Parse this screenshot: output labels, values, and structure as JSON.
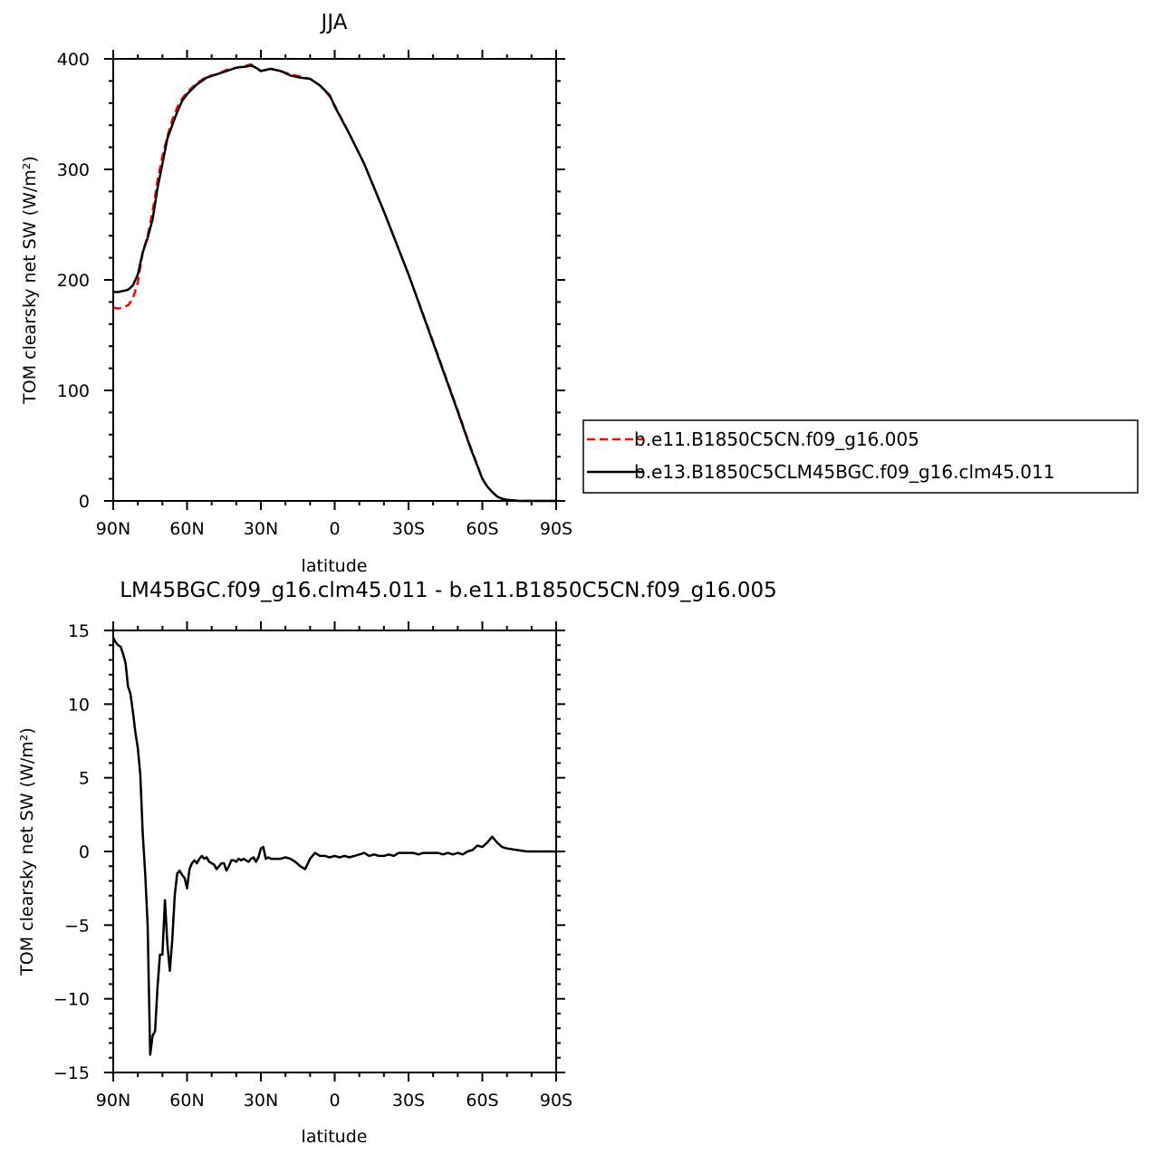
{
  "chart_data": [
    {
      "type": "line",
      "title": "JJA",
      "xlabel": "latitude",
      "ylabel": "TOM clearsky net SW (W/m²)",
      "x_ticks": [
        "90N",
        "60N",
        "30N",
        "0",
        "30S",
        "60S",
        "90S"
      ],
      "x_tick_values": [
        90,
        60,
        30,
        0,
        -30,
        -60,
        -90
      ],
      "xlim": [
        90,
        -90
      ],
      "ylim": [
        0,
        400
      ],
      "y_ticks": [
        0,
        100,
        200,
        300,
        400
      ],
      "legend_position": "right",
      "series": [
        {
          "name": "b.e11.B1850C5CN.f09_g16.005",
          "color": "#ff0000",
          "dash": "dashed",
          "x": [
            90,
            88,
            86,
            84,
            82,
            80,
            78,
            76,
            74,
            72,
            70,
            68,
            66,
            64,
            62,
            60,
            56,
            52,
            48,
            44,
            40,
            36,
            34,
            32,
            30,
            26,
            22,
            18,
            14,
            10,
            6,
            2,
            0,
            -6,
            -12,
            -20,
            -30,
            -40,
            -50,
            -55,
            -60,
            -62,
            -64,
            -66,
            -68,
            -70,
            -75,
            -80,
            -85,
            -90
          ],
          "y": [
            175,
            174,
            175,
            177,
            183,
            198,
            225,
            240,
            262,
            290,
            312,
            330,
            345,
            356,
            364,
            370,
            378,
            384,
            386,
            390,
            392,
            394,
            395,
            392,
            389,
            391,
            389,
            386,
            384,
            382,
            376,
            366,
            358,
            332,
            305,
            262,
            205,
            144,
            82,
            50,
            20,
            13,
            8,
            4,
            2,
            1,
            0,
            0,
            0,
            0
          ]
        },
        {
          "name": "b.e13.B1850C5CLM45BGC.f09_g16.clm45.011",
          "color": "#000000",
          "dash": "solid",
          "x": [
            90,
            88,
            86,
            84,
            82,
            80,
            78,
            76,
            74,
            72,
            70,
            68,
            66,
            64,
            62,
            60,
            56,
            52,
            48,
            44,
            40,
            36,
            34,
            32,
            30,
            26,
            22,
            18,
            14,
            10,
            6,
            2,
            0,
            -6,
            -12,
            -20,
            -30,
            -40,
            -50,
            -55,
            -60,
            -62,
            -64,
            -66,
            -68,
            -70,
            -75,
            -80,
            -85,
            -90
          ],
          "y": [
            189,
            189,
            190,
            191,
            195,
            205,
            225,
            238,
            255,
            283,
            305,
            328,
            340,
            352,
            362,
            368,
            377,
            383,
            386,
            389,
            392,
            393,
            394,
            392,
            389,
            391,
            389,
            385,
            383,
            382,
            376,
            367,
            357,
            332,
            305,
            262,
            205,
            143,
            81,
            49,
            20,
            13,
            8,
            4,
            2,
            1,
            0,
            0,
            0,
            0
          ]
        }
      ]
    },
    {
      "type": "line",
      "title": "LM45BGC.f09_g16.clm45.011 - b.e11.B1850C5CN.f09_g16.005",
      "xlabel": "latitude",
      "ylabel": "TOM clearsky net SW (W/m²)",
      "x_ticks": [
        "90N",
        "60N",
        "30N",
        "0",
        "30S",
        "60S",
        "90S"
      ],
      "x_tick_values": [
        90,
        60,
        30,
        0,
        -30,
        -60,
        -90
      ],
      "xlim": [
        90,
        -90
      ],
      "ylim": [
        -15,
        15
      ],
      "y_ticks": [
        -15,
        -10,
        -5,
        0,
        5,
        10,
        15
      ],
      "series": [
        {
          "color": "#000000",
          "dash": "solid",
          "x": [
            90,
            89,
            88,
            87,
            86,
            85,
            84,
            83,
            82,
            81,
            80,
            79,
            78,
            77,
            76,
            75,
            74,
            73,
            72,
            71,
            70,
            69,
            68,
            67,
            66,
            65,
            64,
            63,
            62,
            61,
            60,
            59,
            58,
            57,
            56,
            55,
            54,
            53,
            52,
            51,
            50,
            49,
            48,
            47,
            46,
            45,
            44,
            43,
            42,
            41,
            40,
            39,
            38,
            37,
            36,
            35,
            34,
            33,
            32,
            31,
            30,
            29,
            28,
            27,
            26,
            24,
            22,
            20,
            18,
            16,
            14,
            12,
            10,
            8,
            6,
            4,
            2,
            0,
            -2,
            -4,
            -6,
            -8,
            -10,
            -12,
            -14,
            -16,
            -18,
            -20,
            -22,
            -24,
            -26,
            -28,
            -30,
            -32,
            -34,
            -36,
            -38,
            -40,
            -42,
            -44,
            -46,
            -48,
            -50,
            -52,
            -54,
            -56,
            -58,
            -60,
            -62,
            -64,
            -66,
            -68,
            -70,
            -74,
            -78,
            -82,
            -86,
            -90
          ],
          "y": [
            14.5,
            14.2,
            14.0,
            13.9,
            13.4,
            12.8,
            11.2,
            10.7,
            9.5,
            8.1,
            7.0,
            5.2,
            1.2,
            -1.5,
            -5.0,
            -13.8,
            -12.5,
            -12.2,
            -9.2,
            -7.0,
            -7.0,
            -3.3,
            -6.3,
            -8.1,
            -6.0,
            -3.0,
            -1.5,
            -1.3,
            -1.6,
            -1.8,
            -2.5,
            -1.2,
            -0.8,
            -0.6,
            -0.8,
            -0.5,
            -0.3,
            -0.5,
            -0.4,
            -0.7,
            -0.8,
            -0.9,
            -1.2,
            -1.0,
            -0.8,
            -0.8,
            -1.3,
            -1.0,
            -0.6,
            -0.6,
            -0.7,
            -0.5,
            -0.6,
            -0.5,
            -0.6,
            -0.7,
            -0.5,
            -0.4,
            -0.7,
            -0.4,
            0.2,
            0.3,
            -0.5,
            -0.4,
            -0.5,
            -0.5,
            -0.5,
            -0.4,
            -0.5,
            -0.7,
            -1.0,
            -1.2,
            -0.5,
            -0.1,
            -0.3,
            -0.3,
            -0.4,
            -0.3,
            -0.4,
            -0.3,
            -0.4,
            -0.3,
            -0.2,
            -0.1,
            -0.3,
            -0.2,
            -0.3,
            -0.3,
            -0.2,
            -0.3,
            -0.1,
            -0.1,
            -0.1,
            -0.1,
            -0.2,
            -0.1,
            -0.1,
            -0.1,
            -0.1,
            -0.2,
            -0.1,
            -0.2,
            -0.1,
            -0.2,
            0.0,
            0.1,
            0.4,
            0.3,
            0.6,
            1.0,
            0.6,
            0.3,
            0.2,
            0.1,
            0.0,
            0.0,
            0.0,
            0.0
          ]
        }
      ]
    }
  ]
}
